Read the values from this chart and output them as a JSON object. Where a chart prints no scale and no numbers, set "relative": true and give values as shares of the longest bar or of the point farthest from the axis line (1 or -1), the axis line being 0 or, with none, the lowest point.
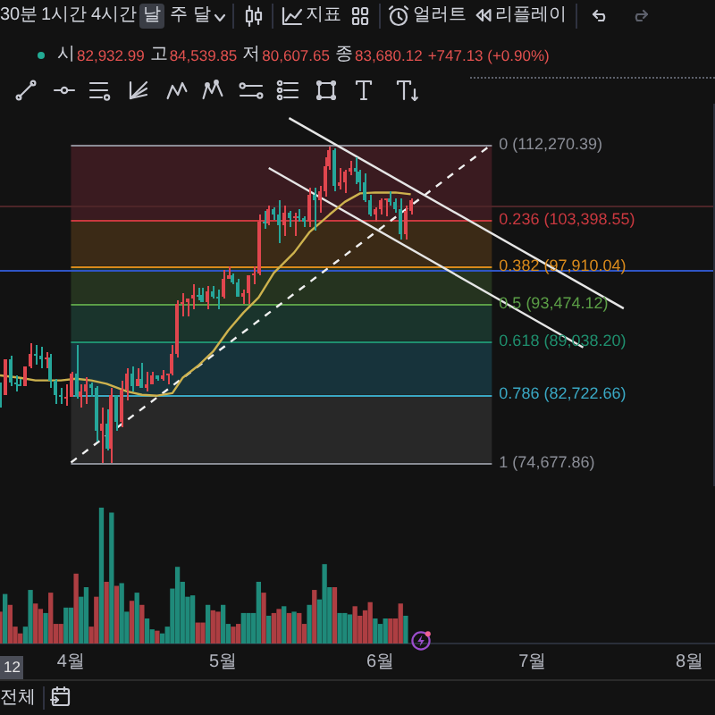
{
  "chart_data": [
    {
      "type": "candlestick",
      "x": [
        "--03-18",
        "--03-19",
        "--03-20",
        "--03-21",
        "--03-22",
        "--03-23",
        "--03-24",
        "--03-25",
        "--03-26",
        "--03-27",
        "--03-28",
        "--03-29",
        "--03-30",
        "--03-31",
        "--04-01",
        "--04-02",
        "--04-03",
        "--04-04",
        "--04-05",
        "--04-06",
        "--04-07",
        "--04-08",
        "--04-09",
        "--04-10",
        "--04-11",
        "--04-12",
        "--04-13",
        "--04-14",
        "--04-15",
        "--04-16",
        "--04-17",
        "--04-18",
        "--04-19",
        "--04-20",
        "--04-21",
        "--04-22",
        "--04-23",
        "--04-24",
        "--04-25",
        "--04-26",
        "--04-27",
        "--04-28",
        "--04-29",
        "--04-30",
        "--05-01",
        "--05-02",
        "--05-03",
        "--05-04",
        "--05-05",
        "--05-06",
        "--05-07",
        "--05-08",
        "--05-09",
        "--05-10",
        "--05-11",
        "--05-12",
        "--05-13",
        "--05-14",
        "--05-15",
        "--05-16",
        "--05-17",
        "--05-18",
        "--05-19",
        "--05-20",
        "--05-21",
        "--05-22",
        "--05-23",
        "--05-24",
        "--05-25",
        "--05-26",
        "--05-27",
        "--05-28",
        "--05-29",
        "--05-30",
        "--05-31",
        "--06-01",
        "--06-02",
        "--06-03",
        "--06-04",
        "--06-05",
        "--06-06",
        "--06-07"
      ],
      "ohlc": [
        [
          84100,
          84100,
          81200,
          82700
        ],
        [
          82700,
          87000,
          82600,
          86900
        ],
        [
          86900,
          87400,
          83700,
          84200
        ],
        [
          84200,
          84900,
          83200,
          84000
        ],
        [
          84000,
          84500,
          83700,
          83800
        ],
        [
          83800,
          86100,
          83700,
          86100
        ],
        [
          86100,
          88800,
          85900,
          87500
        ],
        [
          87500,
          88500,
          86300,
          87400
        ],
        [
          87400,
          88300,
          85900,
          86900
        ],
        [
          86900,
          87800,
          85800,
          87200
        ],
        [
          87200,
          87500,
          83600,
          84400
        ],
        [
          84400,
          84600,
          81600,
          82600
        ],
        [
          82600,
          83500,
          81600,
          82400
        ],
        [
          82400,
          83900,
          81300,
          82500
        ],
        [
          82500,
          85500,
          82400,
          85200
        ],
        [
          85200,
          88500,
          82300,
          82500
        ],
        [
          82500,
          83900,
          81200,
          83200
        ],
        [
          83200,
          84700,
          81700,
          83900
        ],
        [
          83900,
          84200,
          82400,
          83500
        ],
        [
          83500,
          83800,
          77200,
          78400
        ],
        [
          78400,
          81200,
          74700,
          79200
        ],
        [
          79200,
          80900,
          76200,
          76300
        ],
        [
          76300,
          83600,
          74700,
          82600
        ],
        [
          82600,
          82700,
          78500,
          79600
        ],
        [
          79600,
          84300,
          78900,
          83400
        ],
        [
          83400,
          85900,
          82000,
          85300
        ],
        [
          85300,
          86100,
          83000,
          83800
        ],
        [
          83800,
          85800,
          83700,
          84600
        ],
        [
          84600,
          86500,
          83600,
          83600
        ],
        [
          83600,
          85500,
          83100,
          84000
        ],
        [
          84000,
          85500,
          84000,
          84900
        ],
        [
          84900,
          85100,
          84300,
          84500
        ],
        [
          84500,
          85600,
          84400,
          85100
        ],
        [
          85100,
          85300,
          83900,
          85200
        ],
        [
          85200,
          88500,
          85100,
          87500
        ],
        [
          87500,
          93900,
          87100,
          93400
        ],
        [
          93400,
          94700,
          91900,
          93700
        ],
        [
          93700,
          94000,
          92000,
          94000
        ],
        [
          94000,
          95800,
          92900,
          94600
        ],
        [
          94600,
          95300,
          93900,
          94600
        ],
        [
          94600,
          95400,
          93600,
          93700
        ],
        [
          93700,
          95600,
          92800,
          95000
        ],
        [
          95000,
          95500,
          94000,
          94300
        ],
        [
          94300,
          95200,
          92900,
          94200
        ],
        [
          94200,
          97400,
          94100,
          96500
        ],
        [
          96500,
          97900,
          96300,
          96900
        ],
        [
          96900,
          97000,
          95700,
          95900
        ],
        [
          95900,
          96300,
          94200,
          94300
        ],
        [
          94300,
          95200,
          93500,
          94700
        ],
        [
          94700,
          96900,
          93400,
          96800
        ],
        [
          96800,
          97800,
          95800,
          97000
        ],
        [
          97000,
          104000,
          96900,
          103200
        ],
        [
          103200,
          104400,
          102300,
          103000
        ],
        [
          103000,
          105000,
          102800,
          104700
        ],
        [
          104700,
          104900,
          103300,
          104100
        ],
        [
          104100,
          105800,
          100700,
          102800
        ],
        [
          102800,
          105000,
          101400,
          104200
        ],
        [
          104200,
          104500,
          102600,
          103500
        ],
        [
          103500,
          104200,
          101400,
          103700
        ],
        [
          103700,
          104600,
          103100,
          103500
        ],
        [
          103500,
          103700,
          102600,
          103200
        ],
        [
          103200,
          107100,
          102600,
          106400
        ],
        [
          106400,
          107100,
          102000,
          105600
        ],
        [
          105600,
          107300,
          104200,
          106800
        ],
        [
          106800,
          110800,
          106100,
          109700
        ],
        [
          109700,
          112000,
          109300,
          111700
        ],
        [
          111700,
          111800,
          106800,
          107300
        ],
        [
          107300,
          109500,
          106900,
          107800
        ],
        [
          107800,
          109300,
          106600,
          109000
        ],
        [
          109000,
          110400,
          108700,
          109400
        ],
        [
          109400,
          110700,
          107500,
          109000
        ],
        [
          109000,
          109300,
          106800,
          107800
        ],
        [
          107800,
          108900,
          105400,
          105600
        ],
        [
          105600,
          106300,
          103700,
          104000
        ],
        [
          104000,
          104900,
          103100,
          104600
        ],
        [
          104600,
          105900,
          103900,
          105700
        ],
        [
          105700,
          105900,
          103700,
          105900
        ],
        [
          105900,
          106800,
          105000,
          105400
        ],
        [
          105400,
          106000,
          104200,
          104700
        ],
        [
          104700,
          105900,
          101000,
          101600
        ],
        [
          101600,
          105000,
          101100,
          104400
        ],
        [
          104400,
          105900,
          103900,
          105600
        ]
      ],
      "colors": [
        "#26a69a",
        "#e0464e",
        "#26a69a",
        "#26a69a",
        "#26a69a",
        "#e0464e",
        "#e0464e",
        "#26a69a",
        "#26a69a",
        "#e0464e",
        "#26a69a",
        "#26a69a",
        "#26a69a",
        "#e0464e",
        "#e0464e",
        "#26a69a",
        "#e0464e",
        "#e0464e",
        "#26a69a",
        "#26a69a",
        "#e0464e",
        "#26a69a",
        "#e0464e",
        "#26a69a",
        "#e0464e",
        "#e0464e",
        "#26a69a",
        "#e0464e",
        "#26a69a",
        "#e0464e",
        "#e0464e",
        "#26a69a",
        "#e0464e",
        "#e0464e",
        "#e0464e",
        "#e0464e",
        "#e0464e",
        "#e0464e",
        "#e0464e",
        "#26a69a",
        "#26a69a",
        "#e0464e",
        "#26a69a",
        "#26a69a",
        "#e0464e",
        "#e0464e",
        "#26a69a",
        "#26a69a",
        "#e0464e",
        "#e0464e",
        "#e0464e",
        "#e0464e",
        "#26a69a",
        "#e0464e",
        "#26a69a",
        "#26a69a",
        "#e0464e",
        "#26a69a",
        "#e0464e",
        "#26a69a",
        "#26a69a",
        "#e0464e",
        "#26a69a",
        "#e0464e",
        "#e0464e",
        "#e0464e",
        "#26a69a",
        "#e0464e",
        "#e0464e",
        "#e0464e",
        "#26a69a",
        "#26a69a",
        "#26a69a",
        "#26a69a",
        "#e0464e",
        "#e0464e",
        "#e0464e",
        "#26a69a",
        "#26a69a",
        "#26a69a",
        "#e0464e",
        "#e0464e"
      ],
      "series": [
        {
          "type": "line",
          "color": "#cdb24e",
          "x": [
            "--03-18",
            "--03-22",
            "--03-25",
            "--03-30",
            "--04-02",
            "--04-05",
            "--04-08",
            "--04-12",
            "--04-15",
            "--04-18",
            "--04-21",
            "--04-23",
            "--04-26",
            "--04-29",
            "--05-02",
            "--05-05",
            "--05-08",
            "--05-11",
            "--05-15",
            "--05-18",
            "--05-22",
            "--05-25",
            "--05-28",
            "--05-31",
            "--06-04",
            "--06-07"
          ],
          "values": [
            85000,
            84700,
            84400,
            84400,
            84600,
            84400,
            84000,
            83100,
            82700,
            82600,
            82900,
            84700,
            86100,
            87800,
            90300,
            92400,
            94200,
            97100,
            99500,
            101900,
            104000,
            105500,
            106500,
            106600,
            106600,
            106400
          ]
        },
        {
          "type": "line",
          "color": "#e6e6e6",
          "x": [
            "--05-14",
            "--07-19"
          ],
          "values": [
            115400,
            92900
          ]
        },
        {
          "type": "line",
          "color": "#e6e6e6",
          "x": [
            "--05-10",
            "--07-11"
          ],
          "values": [
            109500,
            88300
          ]
        },
        {
          "type": "line",
          "color": "#f0f0f0",
          "line_style": "dashed",
          "x": [
            "--04-01",
            "--06-23"
          ],
          "values": [
            74700,
            112300
          ]
        }
      ],
      "ref_lines": [
        {
          "axis": "y",
          "value": 112270.39,
          "label": "0 (112,270.39)",
          "color": "#8a8d96"
        },
        {
          "axis": "y",
          "value": 103398.55,
          "label": "0.236 (103,398.55)",
          "color": "#c9383f"
        },
        {
          "axis": "y",
          "value": 97910.04,
          "label": "0.382 (97,910.04)",
          "color": "#d98a1c"
        },
        {
          "axis": "y",
          "value": 93474.12,
          "label": "0.5 (93,474.12)",
          "color": "#5b9e46"
        },
        {
          "axis": "y",
          "value": 89038.2,
          "label": "0.618 (89,038.20)",
          "color": "#1f8f6e"
        },
        {
          "axis": "y",
          "value": 82722.66,
          "label": "0.786 (82,722.66)",
          "color": "#3aa8c4"
        },
        {
          "axis": "y",
          "value": 74677.86,
          "label": "1 (74,677.86)",
          "color": "#8a8d96"
        },
        {
          "axis": "y",
          "value": 97500,
          "color": "#2f55c4"
        },
        {
          "axis": "y",
          "value": 105000,
          "color": "#4d2528"
        }
      ],
      "bands": [
        {
          "axis": "y",
          "from": 103398.55,
          "to": 112270.39,
          "color": "#3a1b20"
        },
        {
          "axis": "y",
          "from": 97910.04,
          "to": 103398.55,
          "color": "#3b2a16"
        },
        {
          "axis": "y",
          "from": 93474.12,
          "to": 97910.04,
          "color": "#25331f"
        },
        {
          "axis": "y",
          "from": 89038.2,
          "to": 93474.12,
          "color": "#1a342c"
        },
        {
          "axis": "y",
          "from": 82722.66,
          "to": 89038.2,
          "color": "#17333b"
        },
        {
          "axis": "y",
          "from": 74677.86,
          "to": 82722.66,
          "color": "#282828"
        }
      ],
      "xlim": [
        "--03-18",
        "--08-06"
      ],
      "ylim": [
        71900,
        117100
      ],
      "tick_labels": false,
      "annotations": [
        "30분",
        "1시간",
        "4시간",
        "날",
        "주",
        "달",
        "지표",
        "얼러트",
        "리플레이",
        "시",
        "82,932.99",
        "고",
        "84,539.85",
        "저",
        "80,607.65",
        "종",
        "83,680.12",
        "+747.13 (+0.90%)"
      ]
    },
    {
      "type": "bar",
      "relative": true,
      "x": [
        "--03-18",
        "--03-19",
        "--03-20",
        "--03-21",
        "--03-22",
        "--03-23",
        "--03-24",
        "--03-25",
        "--03-26",
        "--03-27",
        "--03-28",
        "--03-29",
        "--03-30",
        "--03-31",
        "--04-01",
        "--04-02",
        "--04-03",
        "--04-04",
        "--04-05",
        "--04-06",
        "--04-07",
        "--04-08",
        "--04-09",
        "--04-10",
        "--04-11",
        "--04-12",
        "--04-13",
        "--04-14",
        "--04-15",
        "--04-16",
        "--04-17",
        "--04-18",
        "--04-19",
        "--04-20",
        "--04-21",
        "--04-22",
        "--04-23",
        "--04-24",
        "--04-25",
        "--04-26",
        "--04-27",
        "--04-28",
        "--04-29",
        "--04-30",
        "--05-01",
        "--05-02",
        "--05-03",
        "--05-04",
        "--05-05",
        "--05-06",
        "--05-07",
        "--05-08",
        "--05-09",
        "--05-10",
        "--05-11",
        "--05-12",
        "--05-13",
        "--05-14",
        "--05-15",
        "--05-16",
        "--05-17",
        "--05-18",
        "--05-19",
        "--05-20",
        "--05-21",
        "--05-22",
        "--05-23",
        "--05-24",
        "--05-25",
        "--05-26",
        "--05-27",
        "--05-28",
        "--05-29",
        "--05-30",
        "--05-31",
        "--06-01",
        "--06-02",
        "--06-03",
        "--06-04",
        "--06-05",
        "--06-06"
      ],
      "values": [
        0.23,
        0.36,
        0.28,
        0.12,
        0.07,
        0.12,
        0.39,
        0.29,
        0.25,
        0.22,
        0.37,
        0.14,
        0.14,
        0.26,
        0.26,
        0.51,
        0.34,
        0.41,
        0.12,
        0.34,
        1,
        0.45,
        0.96,
        0.42,
        0.44,
        0.23,
        0.31,
        0.37,
        0.28,
        0.18,
        0.1,
        0.09,
        0.07,
        0.12,
        0.4,
        0.56,
        0.45,
        0.34,
        0.35,
        0.15,
        0.15,
        0.28,
        0.24,
        0.23,
        0.28,
        0.14,
        0.12,
        0.14,
        0.22,
        0.22,
        0.22,
        0.45,
        0.37,
        0.2,
        0.22,
        0.25,
        0.27,
        0.22,
        0.23,
        0.22,
        0.14,
        0.28,
        0.39,
        0.32,
        0.58,
        0.41,
        0.41,
        0.22,
        0.22,
        0.21,
        0.27,
        0.2,
        0.24,
        0.3,
        0.18,
        0.14,
        0.18,
        0.18,
        0.18,
        0.29,
        0.2
      ],
      "colors": [
        "#ad3e42",
        "#1f8a7a",
        "#ad3e42",
        "#ad3e42",
        "#ad3e42",
        "#1f8a7a",
        "#1f8a7a",
        "#ad3e42",
        "#ad3e42",
        "#1f8a7a",
        "#ad3e42",
        "#ad3e42",
        "#ad3e42",
        "#1f8a7a",
        "#1f8a7a",
        "#ad3e42",
        "#1f8a7a",
        "#1f8a7a",
        "#ad3e42",
        "#ad3e42",
        "#1f8a7a",
        "#ad3e42",
        "#1f8a7a",
        "#ad3e42",
        "#1f8a7a",
        "#1f8a7a",
        "#ad3e42",
        "#1f8a7a",
        "#ad3e42",
        "#1f8a7a",
        "#1f8a7a",
        "#ad3e42",
        "#1f8a7a",
        "#1f8a7a",
        "#1f8a7a",
        "#1f8a7a",
        "#1f8a7a",
        "#1f8a7a",
        "#1f8a7a",
        "#ad3e42",
        "#ad3e42",
        "#1f8a7a",
        "#ad3e42",
        "#ad3e42",
        "#1f8a7a",
        "#1f8a7a",
        "#ad3e42",
        "#ad3e42",
        "#1f8a7a",
        "#1f8a7a",
        "#1f8a7a",
        "#1f8a7a",
        "#ad3e42",
        "#1f8a7a",
        "#ad3e42",
        "#ad3e42",
        "#1f8a7a",
        "#ad3e42",
        "#1f8a7a",
        "#ad3e42",
        "#ad3e42",
        "#1f8a7a",
        "#ad3e42",
        "#1f8a7a",
        "#1f8a7a",
        "#1f8a7a",
        "#ad3e42",
        "#1f8a7a",
        "#1f8a7a",
        "#1f8a7a",
        "#ad3e42",
        "#ad3e42",
        "#ad3e42",
        "#ad3e42",
        "#1f8a7a",
        "#1f8a7a",
        "#1f8a7a",
        "#ad3e42",
        "#ad3e42",
        "#ad3e42",
        "#1f8a7a"
      ],
      "xlim": [
        "--03-18",
        "--08-06"
      ],
      "xticks": [
        {
          "value": "--04-01",
          "label": "4월"
        },
        {
          "value": "--05-01",
          "label": "5월"
        },
        {
          "value": "--06-01",
          "label": "6월"
        },
        {
          "value": "--07-01",
          "label": "7월"
        },
        {
          "value": "--08-01",
          "label": "8월"
        }
      ],
      "annotations": [
        "12",
        "전체"
      ]
    }
  ]
}
